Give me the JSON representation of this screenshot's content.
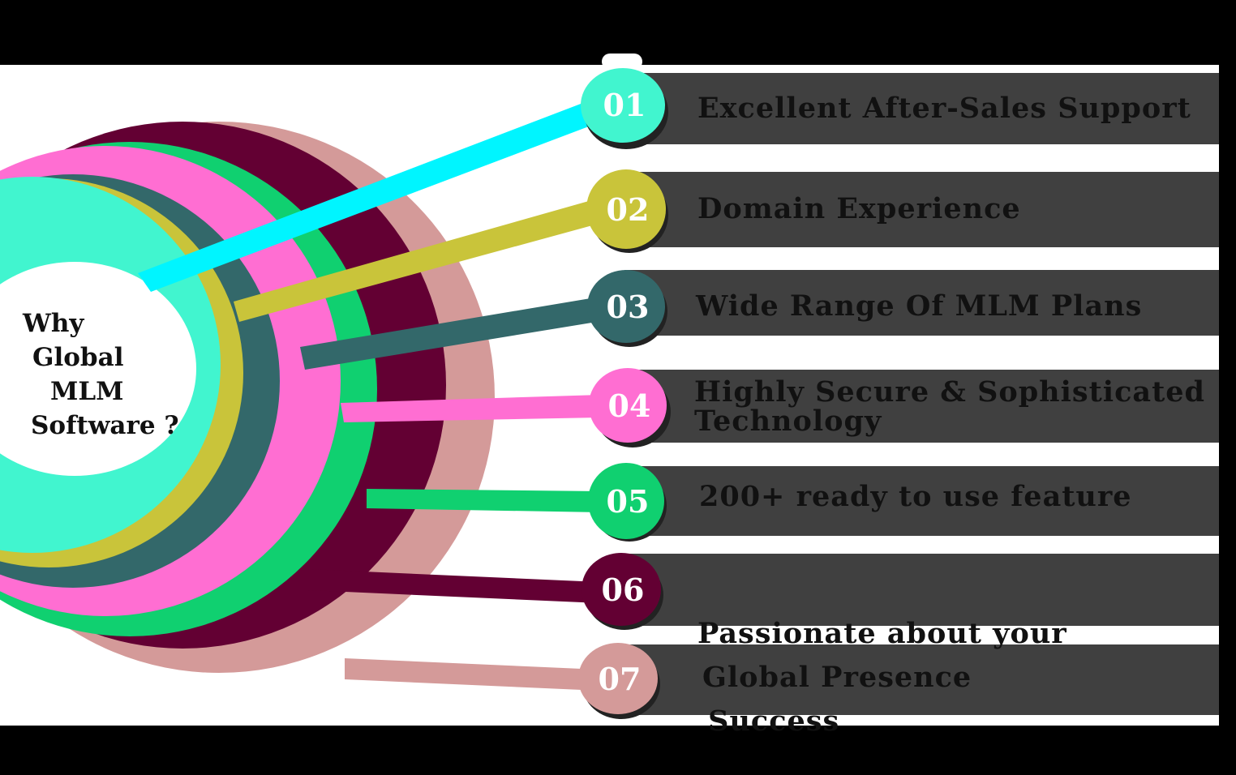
{
  "center": {
    "lines": [
      "Why",
      "Global",
      "MLM",
      "Software ?"
    ]
  },
  "items": [
    {
      "number": "01",
      "label_lines": [
        "Excellent After-Sales Support"
      ],
      "color": "#41f5cf",
      "line_color": "#00f5ff"
    },
    {
      "number": "02",
      "label_lines": [
        "Domain  Experience"
      ],
      "color": "#c9c43a",
      "line_color": "#c9c43a"
    },
    {
      "number": "03",
      "label_lines": [
        "Wide Range Of MLM Plans"
      ],
      "color": "#33686a",
      "line_color": "#33686a"
    },
    {
      "number": "04",
      "label_lines": [
        "Highly Secure & Sophisticated",
        "Technology"
      ],
      "color": "#ff6ed2",
      "line_color": "#ff6ed2"
    },
    {
      "number": "05",
      "label_lines": [
        "200+ ready to use  feature"
      ],
      "color": "#10d070",
      "line_color": "#10d070"
    },
    {
      "number": "06",
      "label_lines": [
        "Passionate about your",
        " Success"
      ],
      "color": "#630033",
      "line_color": "#630033"
    },
    {
      "number": "07",
      "label_lines": [
        "Global  Presence"
      ],
      "color": "#d49a99",
      "line_color": "#d49a99"
    }
  ],
  "colors": {
    "background": "#000000",
    "panel": "#ffffff",
    "band": "#404040",
    "text": "#111111"
  }
}
